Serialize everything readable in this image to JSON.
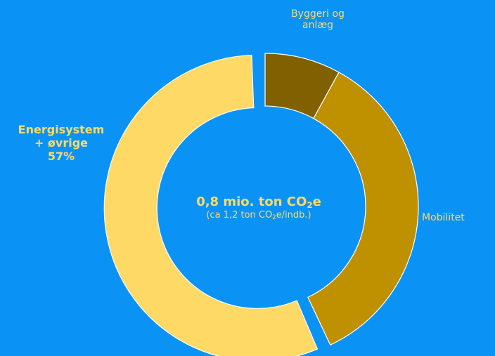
{
  "chart_data": {
    "type": "pie",
    "variant": "donut",
    "slices": [
      {
        "label_lines": [
          "Byggeri og",
          "anlæg"
        ],
        "value": 8,
        "color": "#806000",
        "label_color": "#FFD966",
        "exploded": false
      },
      {
        "label_lines": [
          "Mobilitet"
        ],
        "value": 35,
        "color": "#BF9000",
        "label_color": "#FFD966",
        "exploded": false
      },
      {
        "label_lines": [
          "Energisystem",
          "+ øvrige",
          "57%"
        ],
        "value": 57,
        "color": "#FFD966",
        "label_color": "#FFD966",
        "exploded": true
      }
    ],
    "center": {
      "main_prefix": "0,8 mio. ton CO",
      "main_sub": "2",
      "main_suffix": "e",
      "sub_prefix": "(ca 1,2 ton CO",
      "sub_sub": "2",
      "sub_suffix": "e/indb.)"
    }
  },
  "colors": {
    "background": "#0A93F5",
    "slice_stroke": "#FFFFFF",
    "center_text": "#FFD966",
    "label_text": "#FFD966"
  }
}
